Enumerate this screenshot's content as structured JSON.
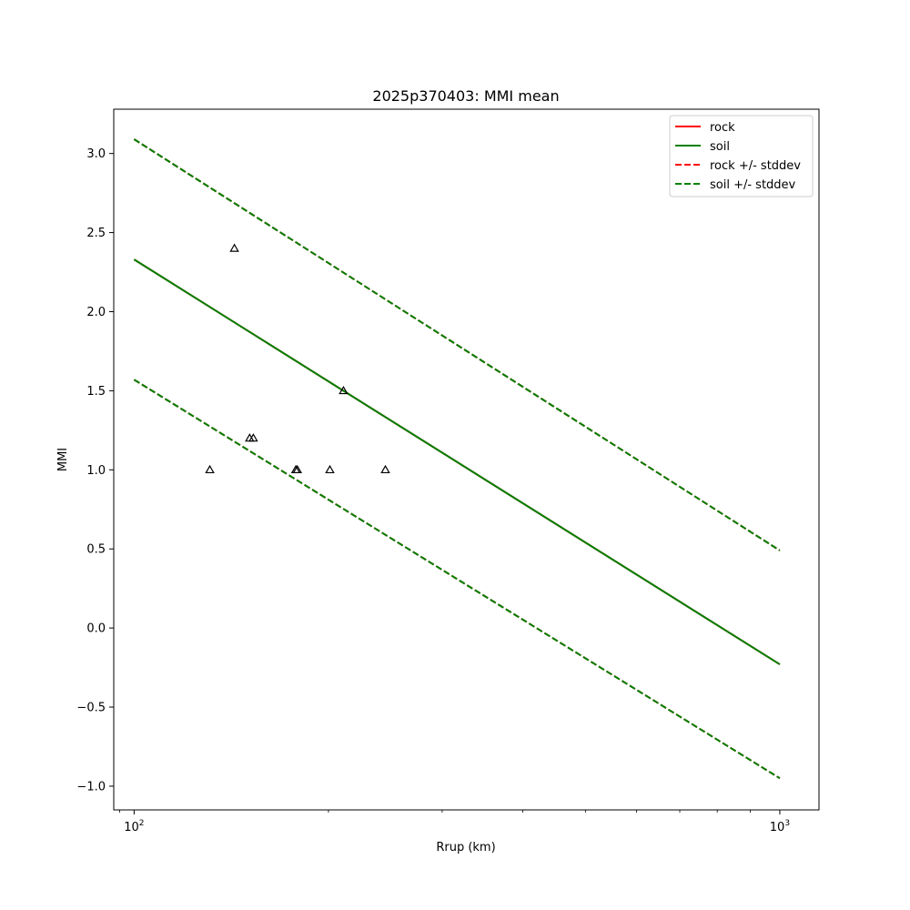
{
  "chart_data": {
    "type": "line",
    "title": "2025p370403: MMI mean",
    "xlabel": "Rrup (km)",
    "ylabel": "MMI",
    "x_scale": "log",
    "xlim": [
      93,
      1150
    ],
    "ylim": [
      -1.15,
      3.28
    ],
    "x_major_ticks": [
      {
        "value": 100,
        "base": "10",
        "exp": "2"
      },
      {
        "value": 1000,
        "base": "10",
        "exp": "3"
      }
    ],
    "x_minor_ticks": [
      200,
      300,
      400,
      500,
      600,
      700,
      800,
      900
    ],
    "y_ticks": [
      {
        "value": 3.0,
        "label": "3.0"
      },
      {
        "value": 2.5,
        "label": "2.5"
      },
      {
        "value": 2.0,
        "label": "2.0"
      },
      {
        "value": 1.5,
        "label": "1.5"
      },
      {
        "value": 1.0,
        "label": "1.0"
      },
      {
        "value": 0.5,
        "label": "0.5"
      },
      {
        "value": 0.0,
        "label": "0.0"
      },
      {
        "value": -0.5,
        "label": "−0.5"
      },
      {
        "value": -1.0,
        "label": "−1.0"
      }
    ],
    "grid": false,
    "legend_position": "top-right",
    "series": [
      {
        "name": "rock",
        "color": "#ff0000",
        "dashed": false,
        "x": [
          100,
          1000
        ],
        "y": [
          2.33,
          -0.23
        ]
      },
      {
        "name": "soil",
        "color": "#008000",
        "dashed": false,
        "x": [
          100,
          1000
        ],
        "y": [
          2.33,
          -0.23
        ]
      },
      {
        "name": "rock +/- stddev",
        "color": "#ff0000",
        "dashed": true,
        "x": [
          100,
          1000
        ],
        "y": [
          3.09,
          0.49
        ]
      },
      {
        "name": "rock +/- stddev",
        "color": "#ff0000",
        "dashed": true,
        "legend": false,
        "x": [
          100,
          1000
        ],
        "y": [
          1.57,
          -0.95
        ]
      },
      {
        "name": "soil +/- stddev",
        "color": "#008000",
        "dashed": true,
        "x": [
          100,
          1000
        ],
        "y": [
          3.09,
          0.49
        ]
      },
      {
        "name": "soil +/- stddev",
        "color": "#008000",
        "dashed": true,
        "legend": false,
        "x": [
          100,
          1000
        ],
        "y": [
          1.57,
          -0.95
        ]
      }
    ],
    "observations": {
      "marker": "triangle-up-open",
      "color": "#000000",
      "points": [
        {
          "x": 131,
          "y": 1.0
        },
        {
          "x": 143,
          "y": 2.4
        },
        {
          "x": 151,
          "y": 1.2
        },
        {
          "x": 153,
          "y": 1.2
        },
        {
          "x": 178,
          "y": 1.0
        },
        {
          "x": 179,
          "y": 1.0
        },
        {
          "x": 201,
          "y": 1.0
        },
        {
          "x": 211,
          "y": 1.5
        },
        {
          "x": 245,
          "y": 1.0
        }
      ]
    }
  }
}
